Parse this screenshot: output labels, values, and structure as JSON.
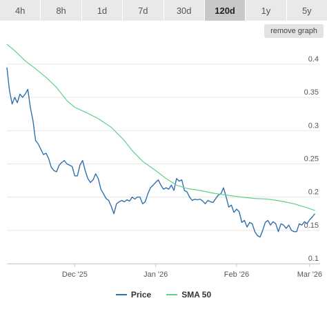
{
  "tabs": [
    {
      "label": "4h",
      "active": false
    },
    {
      "label": "8h",
      "active": false
    },
    {
      "label": "1d",
      "active": false
    },
    {
      "label": "7d",
      "active": false
    },
    {
      "label": "30d",
      "active": false
    },
    {
      "label": "120d",
      "active": true
    },
    {
      "label": "1y",
      "active": false
    },
    {
      "label": "5y",
      "active": false
    }
  ],
  "remove_graph_label": "remove graph",
  "colors": {
    "price": "#2f6fad",
    "sma": "#5fd08c",
    "grid": "#e6e6e6"
  },
  "chart_data": {
    "type": "line",
    "ylim": [
      0.1,
      0.43
    ],
    "xlim": [
      "2025-11-05",
      "2026-03-05"
    ],
    "y_ticks": [
      "0.4",
      "0.35",
      "0.3",
      "0.25",
      "0.2",
      "0.15",
      "0.1"
    ],
    "x_ticks": [
      {
        "label": "Dec '25",
        "date": "2025-12-01"
      },
      {
        "label": "Jan '26",
        "date": "2026-01-01"
      },
      {
        "label": "Feb '26",
        "date": "2026-02-01"
      },
      {
        "label": "Mar '26",
        "date": "2026-03-01"
      }
    ],
    "grid": true,
    "legend_position": "bottom",
    "series": [
      {
        "name": "Price",
        "points": [
          [
            "2025-11-05",
            0.395
          ],
          [
            "2025-11-06",
            0.36
          ],
          [
            "2025-11-07",
            0.34
          ],
          [
            "2025-11-08",
            0.35
          ],
          [
            "2025-11-09",
            0.342
          ],
          [
            "2025-11-10",
            0.355
          ],
          [
            "2025-11-11",
            0.35
          ],
          [
            "2025-11-12",
            0.355
          ],
          [
            "2025-11-13",
            0.362
          ],
          [
            "2025-11-14",
            0.335
          ],
          [
            "2025-11-15",
            0.315
          ],
          [
            "2025-11-16",
            0.285
          ],
          [
            "2025-11-17",
            0.28
          ],
          [
            "2025-11-18",
            0.272
          ],
          [
            "2025-11-19",
            0.264
          ],
          [
            "2025-11-20",
            0.266
          ],
          [
            "2025-11-21",
            0.258
          ],
          [
            "2025-11-22",
            0.245
          ],
          [
            "2025-11-23",
            0.24
          ],
          [
            "2025-11-24",
            0.238
          ],
          [
            "2025-11-25",
            0.248
          ],
          [
            "2025-11-26",
            0.252
          ],
          [
            "2025-11-27",
            0.255
          ],
          [
            "2025-11-28",
            0.25
          ],
          [
            "2025-11-29",
            0.248
          ],
          [
            "2025-11-30",
            0.246
          ],
          [
            "2025-12-01",
            0.232
          ],
          [
            "2025-12-02",
            0.232
          ],
          [
            "2025-12-03",
            0.248
          ],
          [
            "2025-12-04",
            0.255
          ],
          [
            "2025-12-05",
            0.24
          ],
          [
            "2025-12-06",
            0.228
          ],
          [
            "2025-12-07",
            0.222
          ],
          [
            "2025-12-08",
            0.226
          ],
          [
            "2025-12-09",
            0.235
          ],
          [
            "2025-12-10",
            0.228
          ],
          [
            "2025-12-11",
            0.212
          ],
          [
            "2025-12-12",
            0.205
          ],
          [
            "2025-12-13",
            0.198
          ],
          [
            "2025-12-14",
            0.195
          ],
          [
            "2025-12-15",
            0.186
          ],
          [
            "2025-12-16",
            0.175
          ],
          [
            "2025-12-17",
            0.19
          ],
          [
            "2025-12-18",
            0.193
          ],
          [
            "2025-12-19",
            0.195
          ],
          [
            "2025-12-20",
            0.193
          ],
          [
            "2025-12-21",
            0.196
          ],
          [
            "2025-12-22",
            0.194
          ],
          [
            "2025-12-23",
            0.2
          ],
          [
            "2025-12-24",
            0.197
          ],
          [
            "2025-12-25",
            0.2
          ],
          [
            "2025-12-26",
            0.2
          ],
          [
            "2025-12-27",
            0.19
          ],
          [
            "2025-12-28",
            0.193
          ],
          [
            "2025-12-29",
            0.205
          ],
          [
            "2025-12-30",
            0.214
          ],
          [
            "2025-12-31",
            0.218
          ],
          [
            "2026-01-01",
            0.222
          ],
          [
            "2026-01-02",
            0.226
          ],
          [
            "2026-01-03",
            0.218
          ],
          [
            "2026-01-04",
            0.212
          ],
          [
            "2026-01-05",
            0.214
          ],
          [
            "2026-01-06",
            0.212
          ],
          [
            "2026-01-07",
            0.218
          ],
          [
            "2026-01-08",
            0.21
          ],
          [
            "2026-01-09",
            0.228
          ],
          [
            "2026-01-10",
            0.224
          ],
          [
            "2026-01-11",
            0.226
          ],
          [
            "2026-01-12",
            0.21
          ],
          [
            "2026-01-13",
            0.208
          ],
          [
            "2026-01-14",
            0.2
          ],
          [
            "2026-01-15",
            0.195
          ],
          [
            "2026-01-16",
            0.197
          ],
          [
            "2026-01-17",
            0.196
          ],
          [
            "2026-01-18",
            0.197
          ],
          [
            "2026-01-19",
            0.194
          ],
          [
            "2026-01-20",
            0.19
          ],
          [
            "2026-01-21",
            0.195
          ],
          [
            "2026-01-22",
            0.193
          ],
          [
            "2026-01-23",
            0.192
          ],
          [
            "2026-01-24",
            0.198
          ],
          [
            "2026-01-25",
            0.203
          ],
          [
            "2026-01-26",
            0.205
          ],
          [
            "2026-01-27",
            0.214
          ],
          [
            "2026-01-28",
            0.2
          ],
          [
            "2026-01-29",
            0.185
          ],
          [
            "2026-01-30",
            0.188
          ],
          [
            "2026-01-31",
            0.177
          ],
          [
            "2026-02-01",
            0.182
          ],
          [
            "2026-02-02",
            0.178
          ],
          [
            "2026-02-03",
            0.162
          ],
          [
            "2026-02-04",
            0.165
          ],
          [
            "2026-02-05",
            0.155
          ],
          [
            "2026-02-06",
            0.162
          ],
          [
            "2026-02-07",
            0.16
          ],
          [
            "2026-02-08",
            0.148
          ],
          [
            "2026-02-09",
            0.142
          ],
          [
            "2026-02-10",
            0.14
          ],
          [
            "2026-02-11",
            0.15
          ],
          [
            "2026-02-12",
            0.162
          ],
          [
            "2026-02-13",
            0.165
          ],
          [
            "2026-02-14",
            0.158
          ],
          [
            "2026-02-15",
            0.163
          ],
          [
            "2026-02-16",
            0.16
          ],
          [
            "2026-02-17",
            0.148
          ],
          [
            "2026-02-18",
            0.16
          ],
          [
            "2026-02-19",
            0.158
          ],
          [
            "2026-02-20",
            0.153
          ],
          [
            "2026-02-21",
            0.158
          ],
          [
            "2026-02-22",
            0.15
          ],
          [
            "2026-02-23",
            0.148
          ],
          [
            "2026-02-24",
            0.148
          ],
          [
            "2026-02-25",
            0.16
          ],
          [
            "2026-02-26",
            0.158
          ],
          [
            "2026-02-27",
            0.163
          ],
          [
            "2026-02-28",
            0.16
          ],
          [
            "2026-03-01",
            0.166
          ],
          [
            "2026-03-02",
            0.17
          ],
          [
            "2026-03-03",
            0.175
          ]
        ]
      },
      {
        "name": "SMA 50",
        "points": [
          [
            "2025-11-05",
            0.43
          ],
          [
            "2025-11-08",
            0.42
          ],
          [
            "2025-11-12",
            0.405
          ],
          [
            "2025-11-16",
            0.393
          ],
          [
            "2025-11-20",
            0.38
          ],
          [
            "2025-11-24",
            0.365
          ],
          [
            "2025-11-28",
            0.345
          ],
          [
            "2025-12-01",
            0.335
          ],
          [
            "2025-12-05",
            0.328
          ],
          [
            "2025-12-10",
            0.318
          ],
          [
            "2025-12-15",
            0.305
          ],
          [
            "2025-12-20",
            0.285
          ],
          [
            "2025-12-23",
            0.27
          ],
          [
            "2025-12-27",
            0.254
          ],
          [
            "2026-01-01",
            0.24
          ],
          [
            "2026-01-05",
            0.228
          ],
          [
            "2026-01-09",
            0.218
          ],
          [
            "2026-01-13",
            0.213
          ],
          [
            "2026-01-18",
            0.21
          ],
          [
            "2026-01-23",
            0.206
          ],
          [
            "2026-01-28",
            0.203
          ],
          [
            "2026-02-03",
            0.2
          ],
          [
            "2026-02-08",
            0.198
          ],
          [
            "2026-02-13",
            0.197
          ],
          [
            "2026-02-18",
            0.194
          ],
          [
            "2026-02-23",
            0.19
          ],
          [
            "2026-02-28",
            0.184
          ],
          [
            "2026-03-03",
            0.18
          ]
        ]
      }
    ]
  }
}
